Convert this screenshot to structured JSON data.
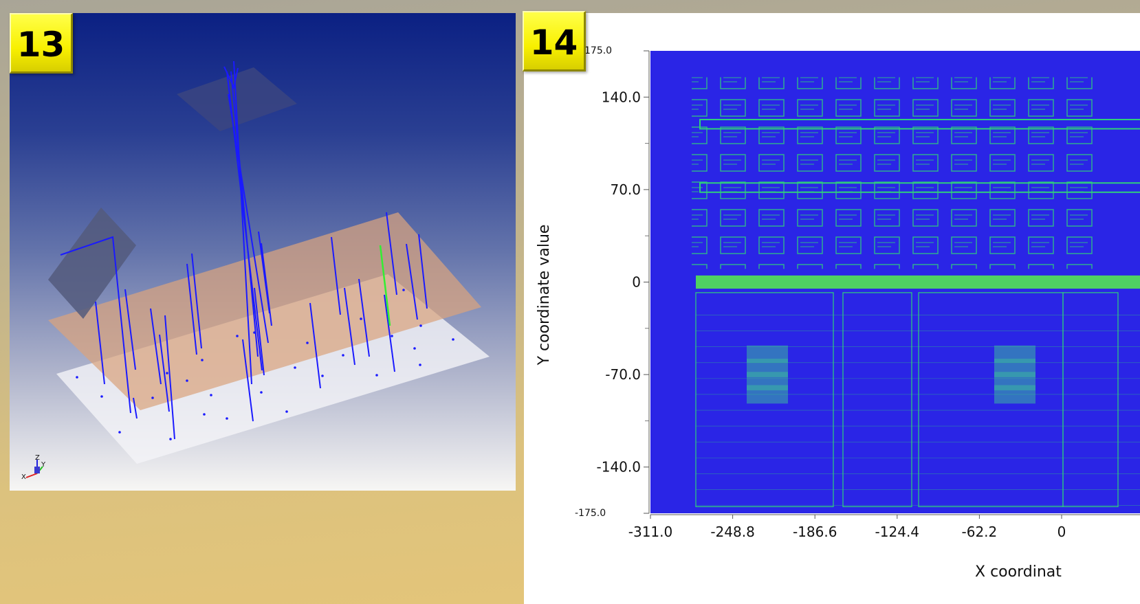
{
  "badges": {
    "left": "13",
    "right": "14"
  },
  "left_panel": {
    "axis_triad_labels": [
      "X",
      "Y",
      "Z"
    ],
    "colors": {
      "lines": "#1a1aff",
      "highlight_line": "#33ee33",
      "copper_plane": "#d9a37e",
      "white_plane": "#f4f4f8",
      "tilted_square": "#545a7c"
    }
  },
  "chart_data": {
    "type": "heatmap",
    "title": "",
    "xlabel": "X coordinat",
    "ylabel": "Y coordinate value",
    "xlim": [
      -311.0,
      0
    ],
    "ylim": [
      -175.0,
      175.0
    ],
    "x_ticks": [
      {
        "value": -311.0,
        "label": "-311.0"
      },
      {
        "value": -248.8,
        "label": "-248.8"
      },
      {
        "value": -186.6,
        "label": "-186.6"
      },
      {
        "value": -124.4,
        "label": "-124.4"
      },
      {
        "value": -62.2,
        "label": "-62.2"
      },
      {
        "value": 0,
        "label": "0"
      }
    ],
    "y_ticks": [
      {
        "value": 175.0,
        "label": "175.0",
        "small": true
      },
      {
        "value": 140.0,
        "label": "140.0"
      },
      {
        "value": 70.0,
        "label": "70.0"
      },
      {
        "value": 0,
        "label": "0"
      },
      {
        "value": -70.0,
        "label": "-70.0"
      },
      {
        "value": -140.0,
        "label": "-140.0"
      },
      {
        "value": -175.0,
        "label": "-175.0",
        "small": true
      }
    ],
    "y_minor_ticks": [
      105.0,
      35.0,
      -35.0,
      -105.0
    ],
    "image_colors": {
      "background": "#2a25e6",
      "foreground": "#2fd07a",
      "bright": "#56f04a"
    }
  }
}
